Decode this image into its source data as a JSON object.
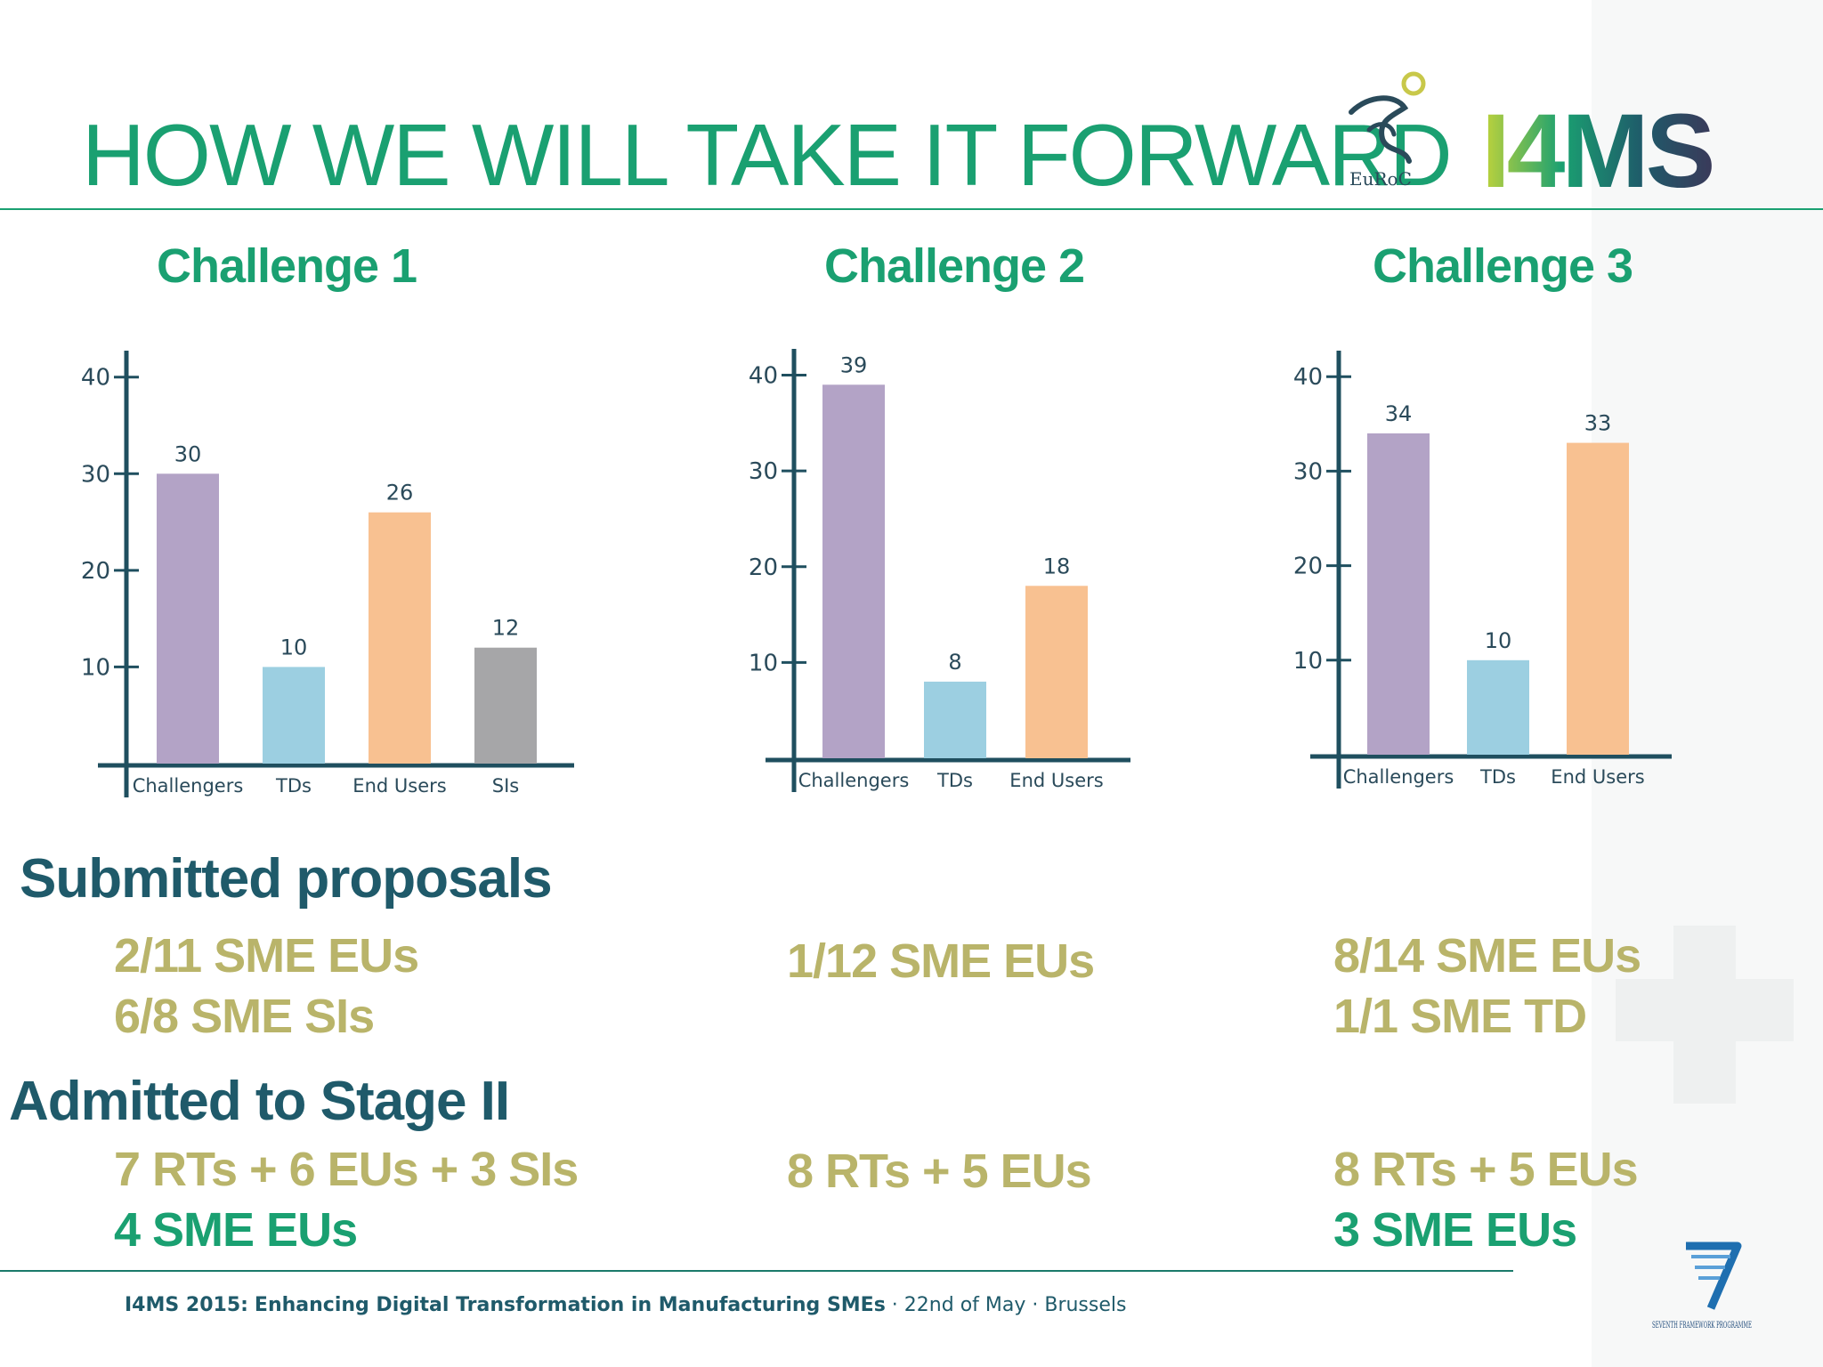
{
  "slide": {
    "title": "HOW WE WILL TAKE IT FORWARD",
    "logos": {
      "euroc_text": "EuRoC",
      "i4ms_text": "I4MS",
      "fp7_text": "SEVENTH FRAMEWORK PROGRAMME"
    }
  },
  "colors": {
    "accent": "#1aa071",
    "heading": "#1f5a6a",
    "stat": "#b9b46a"
  },
  "chart_data": [
    {
      "type": "bar",
      "title": "Challenge 1",
      "categories": [
        "Challengers",
        "TDs",
        "End Users",
        "SIs"
      ],
      "values": [
        30,
        10,
        26,
        12
      ],
      "colors": [
        "#b3a3c6",
        "#9ccfe1",
        "#f8c191",
        "#a6a6a8"
      ],
      "yticks": [
        10,
        20,
        30,
        40
      ],
      "ylim": [
        0,
        42
      ]
    },
    {
      "type": "bar",
      "title": "Challenge 2",
      "categories": [
        "Challengers",
        "TDs",
        "End Users"
      ],
      "values": [
        39,
        8,
        18
      ],
      "colors": [
        "#b3a3c6",
        "#9ccfe1",
        "#f8c191"
      ],
      "yticks": [
        10,
        20,
        30,
        40
      ],
      "ylim": [
        0,
        42
      ]
    },
    {
      "type": "bar",
      "title": "Challenge 3",
      "categories": [
        "Challengers",
        "TDs",
        "End Users"
      ],
      "values": [
        34,
        10,
        33
      ],
      "colors": [
        "#b3a3c6",
        "#9ccfe1",
        "#f8c191"
      ],
      "yticks": [
        10,
        20,
        30,
        40
      ],
      "ylim": [
        0,
        42
      ]
    }
  ],
  "submitted": {
    "heading": "Submitted proposals",
    "c1": [
      "2/11 SME EUs",
      "6/8 SME SIs"
    ],
    "c2": [
      "1/12 SME EUs"
    ],
    "c3": [
      "8/14 SME EUs",
      "1/1 SME TD"
    ]
  },
  "admitted": {
    "heading": "Admitted to Stage II",
    "c1": [
      "7 RTs + 6 EUs + 3 SIs",
      "4 SME EUs"
    ],
    "c2": [
      "8 RTs + 5 EUs"
    ],
    "c3": [
      "8 RTs + 5 EUs",
      "3 SME EUs"
    ]
  },
  "footer": {
    "event": "I4MS 2015:",
    "subtitle": "Enhancing Digital Transformation in Manufacturing SMEs",
    "rest": " · 22nd of May · Brussels"
  }
}
